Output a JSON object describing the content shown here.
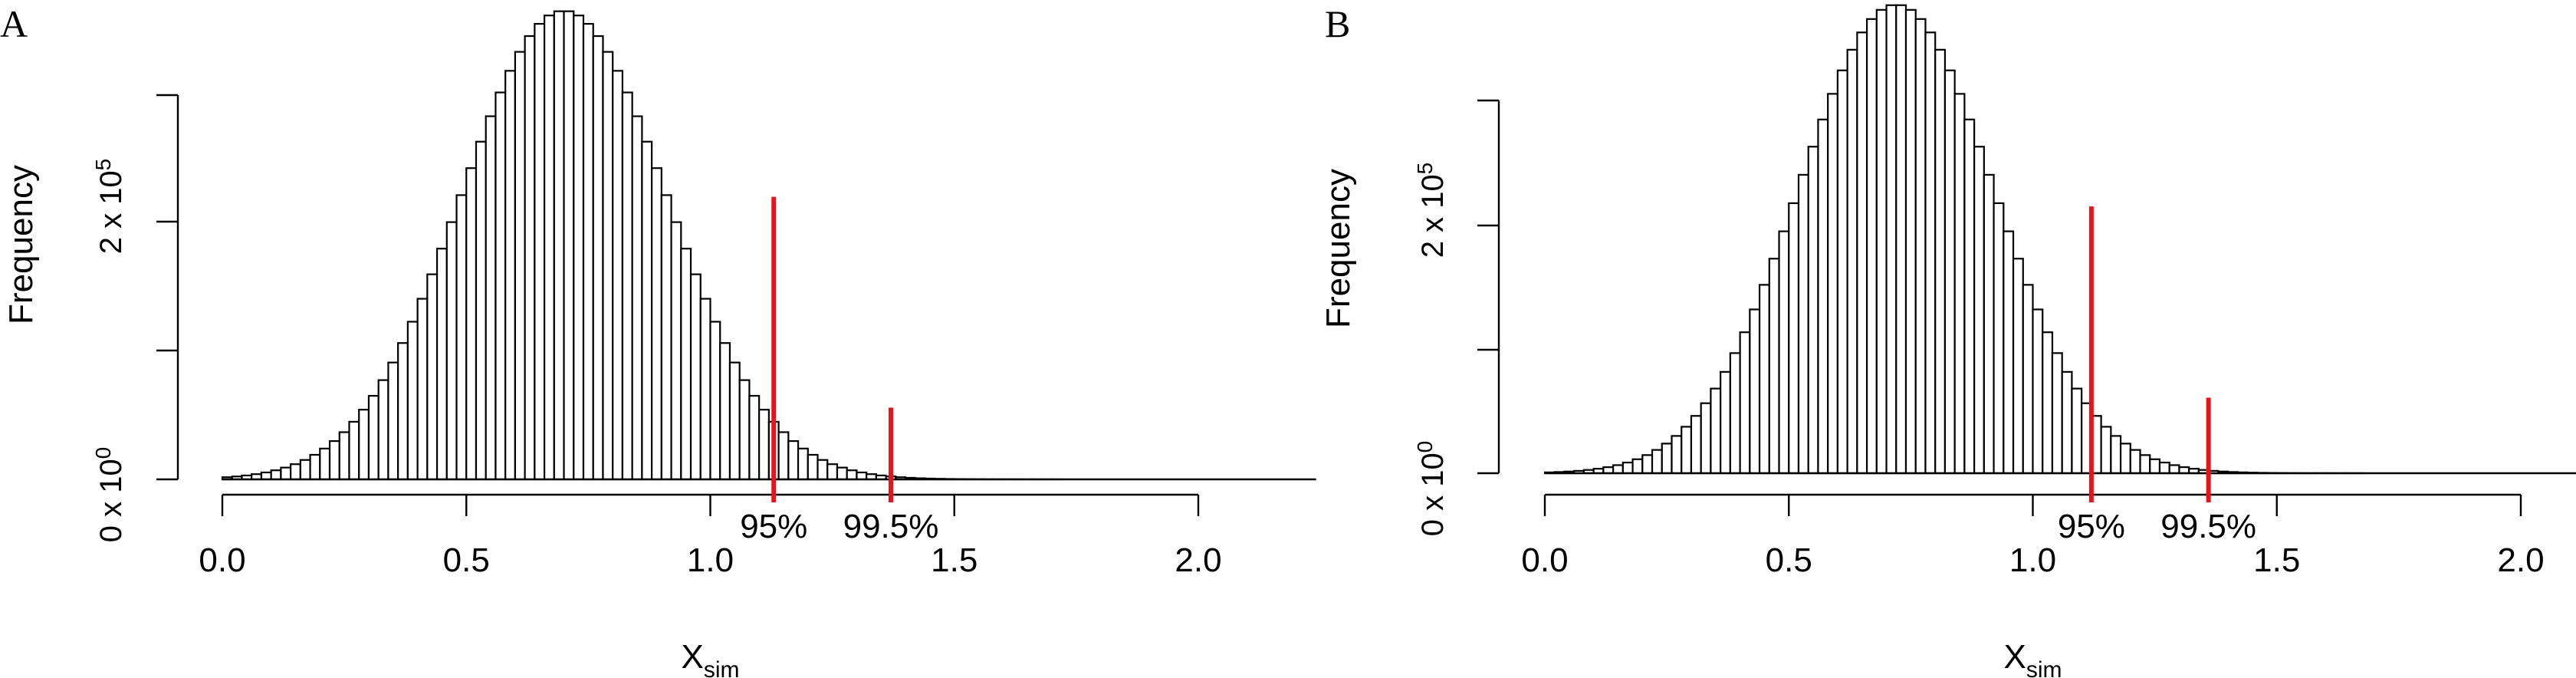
{
  "chart_data": [
    {
      "panel": "A",
      "type": "bar",
      "ylabel": "Frequency",
      "xlabel": "X",
      "xlabel_sub": "sim",
      "xticks": [
        "0.0",
        "0.5",
        "1.0",
        "1.5",
        "2.0"
      ],
      "xlim": [
        0,
        2.1
      ],
      "ytick_label_base": "0 x 10",
      "ytick_label_base_exp": "0",
      "ytick_label_top": "2 x 10",
      "ytick_label_top_exp": "5",
      "bin_width": 0.02,
      "bins_x_start": 0.0,
      "mean": 0.7,
      "sd": 0.21,
      "peak_frequency": 340000,
      "ylim": [
        0,
        340000
      ],
      "annotations": [
        {
          "label": "95%",
          "x": 1.13,
          "color": "#e8141b",
          "top_frequency": 205000
        },
        {
          "label": "99.5%",
          "x": 1.37,
          "color": "#e8141b",
          "top_frequency": 52000
        }
      ]
    },
    {
      "panel": "B",
      "type": "bar",
      "ylabel": "Frequency",
      "xlabel": "X",
      "xlabel_sub": "sim",
      "xticks": [
        "0.0",
        "0.5",
        "1.0",
        "1.5",
        "2.0"
      ],
      "xlim": [
        0,
        2.1
      ],
      "ytick_label_base": "0 x 10",
      "ytick_label_base_exp": "0",
      "ytick_label_top": "2 x 10",
      "ytick_label_top_exp": "5",
      "bin_width": 0.02,
      "bins_x_start": 0.0,
      "mean": 0.72,
      "sd": 0.2,
      "peak_frequency": 360000,
      "ylim": [
        0,
        360000
      ],
      "annotations": [
        {
          "label": "95%",
          "x": 1.12,
          "color": "#e8141b",
          "top_frequency": 205000
        },
        {
          "label": "99.5%",
          "x": 1.36,
          "color": "#e8141b",
          "top_frequency": 58000
        }
      ]
    }
  ]
}
